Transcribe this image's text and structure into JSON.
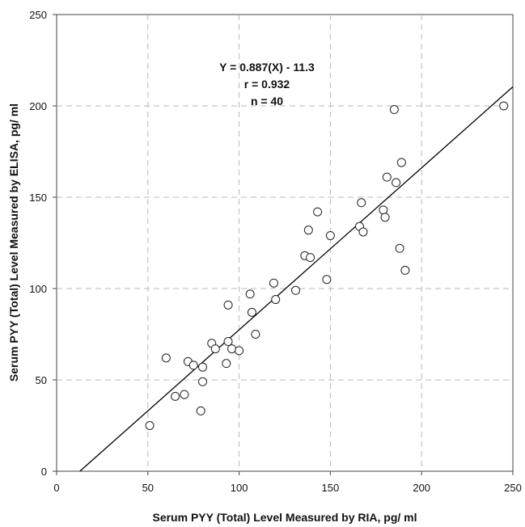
{
  "chart_data": {
    "type": "scatter",
    "title": "",
    "xlabel": "Serum PYY (Total) Level Measured by RIA, pg/ ml",
    "ylabel": "Serum PYY (Total) Level Measured by ELISA, pg/ ml",
    "xlim": [
      0,
      250
    ],
    "ylim": [
      0,
      250
    ],
    "xticks": [
      "0",
      "50",
      "100",
      "150",
      "200",
      "250"
    ],
    "yticks": [
      "0",
      "50",
      "100",
      "150",
      "200",
      "250"
    ],
    "grid": "dashed",
    "annotations": [
      "Y = 0.887(X) - 11.3",
      "r = 0.932",
      "n = 40"
    ],
    "regression": {
      "slope": 0.887,
      "intercept": -11.3
    },
    "points": [
      [
        51,
        25
      ],
      [
        60,
        62
      ],
      [
        65,
        41
      ],
      [
        70,
        42
      ],
      [
        72,
        60
      ],
      [
        75,
        58
      ],
      [
        79,
        33
      ],
      [
        80,
        49
      ],
      [
        80,
        57
      ],
      [
        85,
        70
      ],
      [
        87,
        67
      ],
      [
        93,
        59
      ],
      [
        94,
        71
      ],
      [
        94,
        91
      ],
      [
        96,
        67
      ],
      [
        100,
        66
      ],
      [
        106,
        97
      ],
      [
        107,
        87
      ],
      [
        109,
        75
      ],
      [
        119,
        103
      ],
      [
        120,
        94
      ],
      [
        131,
        99
      ],
      [
        136,
        118
      ],
      [
        138,
        132
      ],
      [
        139,
        117
      ],
      [
        143,
        142
      ],
      [
        148,
        105
      ],
      [
        150,
        129
      ],
      [
        166,
        134
      ],
      [
        167,
        147
      ],
      [
        168,
        131
      ],
      [
        179,
        143
      ],
      [
        180,
        139
      ],
      [
        181,
        161
      ],
      [
        185,
        198
      ],
      [
        186,
        158
      ],
      [
        188,
        122
      ],
      [
        189,
        169
      ],
      [
        191,
        110
      ],
      [
        245,
        200
      ]
    ]
  }
}
